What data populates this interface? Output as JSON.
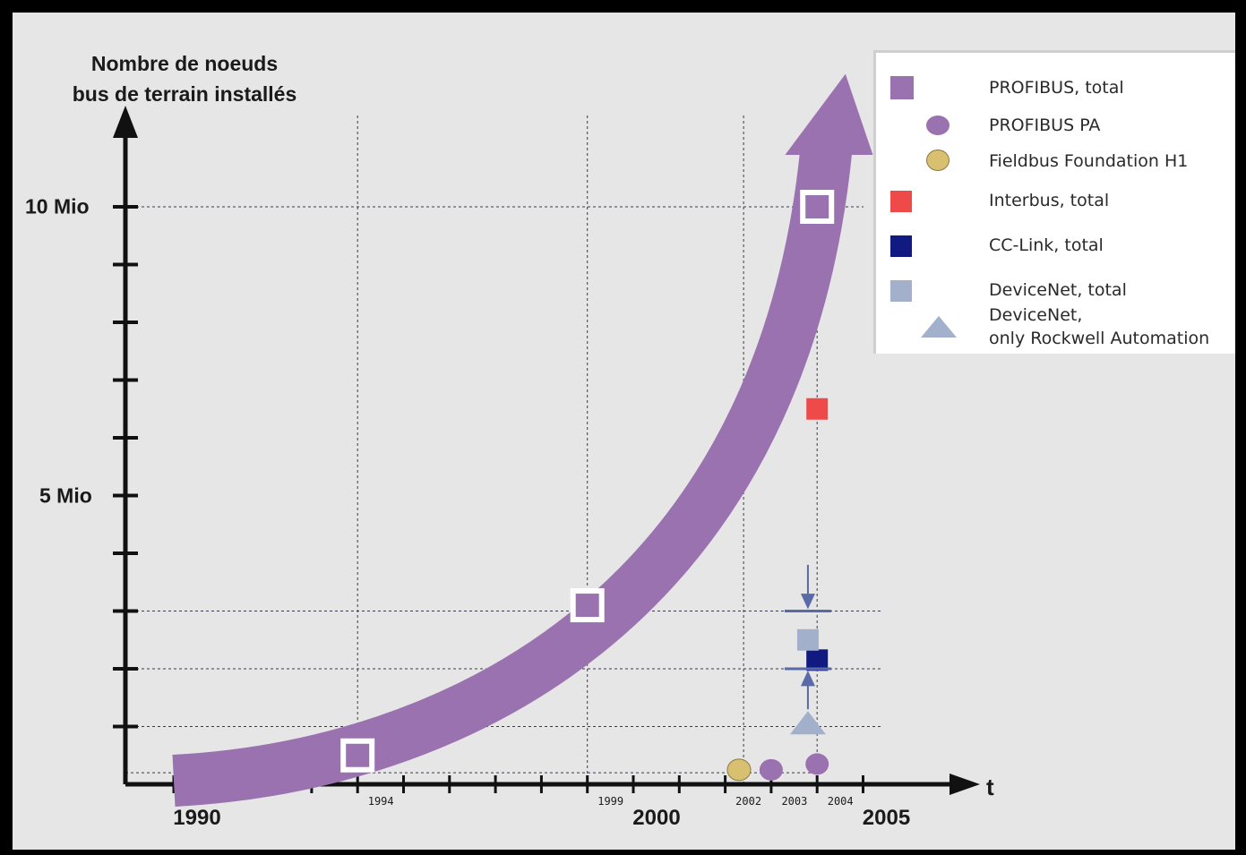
{
  "chart_data": {
    "type": "scatter",
    "ylabel_lines": [
      "Nombre de noeuds",
      "bus de terrain installés"
    ],
    "y_ticks": [
      {
        "value": 5,
        "label": "5 Mio"
      },
      {
        "value": 10,
        "label": "10 Mio"
      }
    ],
    "y_range": [
      0,
      11.5
    ],
    "x_range": [
      1989,
      2006
    ],
    "x_major_ticks": [
      {
        "value": 1990,
        "label": "1990"
      },
      {
        "value": 2000,
        "label": "2000"
      },
      {
        "value": 2005,
        "label": "2005"
      }
    ],
    "x_minor_labels": [
      {
        "value": 1994,
        "label": "1994"
      },
      {
        "value": 1999,
        "label": "1999"
      },
      {
        "value": 2002,
        "label": "2002"
      },
      {
        "value": 2003,
        "label": "2003"
      },
      {
        "value": 2004,
        "label": "2004"
      }
    ],
    "x_axis_symbol": "t",
    "legend_position": "top-right",
    "series": [
      {
        "name": "PROFIBUS, total",
        "marker": "square",
        "color": "#9b72b0",
        "points": [
          [
            1994,
            0.5
          ],
          [
            1999,
            3.1
          ],
          [
            2004,
            10
          ]
        ]
      },
      {
        "name": "PROFIBUS PA",
        "marker": "circle",
        "color": "#9b72b0",
        "points": [
          [
            2003,
            0.25
          ],
          [
            2004,
            0.35
          ]
        ]
      },
      {
        "name": "Fieldbus Foundation H1",
        "marker": "circle",
        "color": "#d9c070",
        "points": [
          [
            2002.3,
            0.25
          ]
        ]
      },
      {
        "name": "Interbus, total",
        "marker": "square",
        "color": "#ef4a4a",
        "points": [
          [
            2004,
            6.5
          ]
        ]
      },
      {
        "name": "CC-Link, total",
        "marker": "square",
        "color": "#101a80",
        "points": [
          [
            2004,
            2.15
          ]
        ]
      },
      {
        "name": "DeviceNet, total",
        "marker": "square",
        "color": "#a3b0cc",
        "points": [
          [
            2003.8,
            2.5
          ]
        ]
      },
      {
        "name": "DeviceNet,\nonly Rockwell Automation",
        "marker": "triangle",
        "color": "#a3b0cc",
        "points": [
          [
            2003.8,
            1.05
          ]
        ]
      }
    ],
    "profibus_trend": [
      [
        1990,
        0
      ],
      [
        1994,
        0.5
      ],
      [
        1999,
        3.1
      ],
      [
        2004,
        10
      ]
    ]
  },
  "legend": {
    "items": [
      {
        "label": "PROFIBUS, total"
      },
      {
        "label": "PROFIBUS PA"
      },
      {
        "label": "Fieldbus Foundation H1"
      },
      {
        "label": "Interbus, total"
      },
      {
        "label": "CC-Link, total"
      },
      {
        "label": "DeviceNet, total"
      },
      {
        "label": "DeviceNet,",
        "label2": "only Rockwell Automation"
      }
    ]
  }
}
